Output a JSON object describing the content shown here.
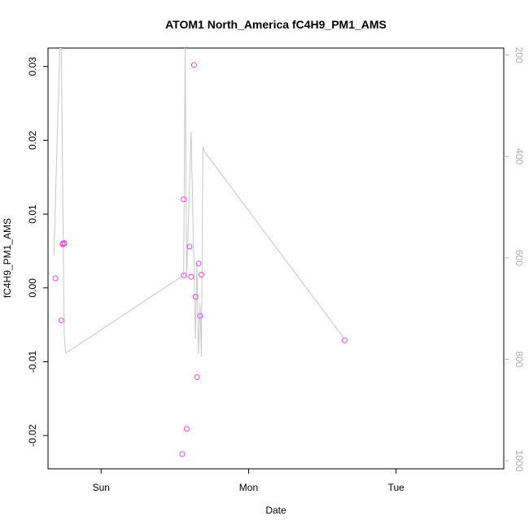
{
  "chart_data": {
    "type": "scatter",
    "title": "ATOM1 North_America fC4H9_PM1_AMS",
    "xlabel": "Date",
    "ylabel": "fC4H9_PM1_AMS",
    "xlim": [
      -0.36,
      2.73
    ],
    "ylim": [
      -0.0245,
      0.0325
    ],
    "xticks": [
      {
        "value": 0,
        "label": "Sun"
      },
      {
        "value": 1,
        "label": "Mon"
      },
      {
        "value": 2,
        "label": "Tue"
      }
    ],
    "yticks": [
      -0.02,
      -0.01,
      0.0,
      0.01,
      0.02,
      0.03
    ],
    "ytick_labels": [
      "-0.02",
      "-0.01",
      "0.00",
      "0.01",
      "0.02",
      "0.03"
    ],
    "y2lim": [
      1016,
      186
    ],
    "y2ticks": [
      200,
      400,
      600,
      800,
      1000
    ],
    "y2tick_labels": [
      "200",
      "400",
      "600",
      "800",
      "1000"
    ],
    "series": [
      {
        "role": "points",
        "color": "#e64ce6",
        "x": [
          -0.31,
          -0.27,
          -0.26,
          -0.25,
          -0.25,
          -0.26,
          0.55,
          0.56,
          0.56,
          0.58,
          0.6,
          0.61,
          0.63,
          0.64,
          0.65,
          0.66,
          0.67,
          0.68,
          1.65
        ],
        "y": [
          0.0013,
          -0.0044,
          0.006,
          0.0061,
          0.006,
          0.0059,
          -0.0225,
          0.012,
          0.0017,
          -0.0191,
          0.0056,
          0.0015,
          0.0302,
          -0.0012,
          -0.0121,
          0.0033,
          -0.0038,
          0.0018,
          -0.0071
        ]
      },
      {
        "role": "secondary-line",
        "color": "#c8c8c8",
        "x": [
          -0.32,
          -0.28,
          -0.27,
          -0.25,
          -0.24,
          0.56,
          0.57,
          0.58,
          0.61,
          0.64,
          0.65,
          0.66,
          0.67,
          0.68,
          0.69,
          0.7,
          1.65
        ],
        "y": [
          595,
          186,
          186,
          750,
          788,
          634,
          186,
          640,
          350,
          760,
          610,
          790,
          690,
          795,
          380,
          390,
          760
        ]
      }
    ]
  }
}
